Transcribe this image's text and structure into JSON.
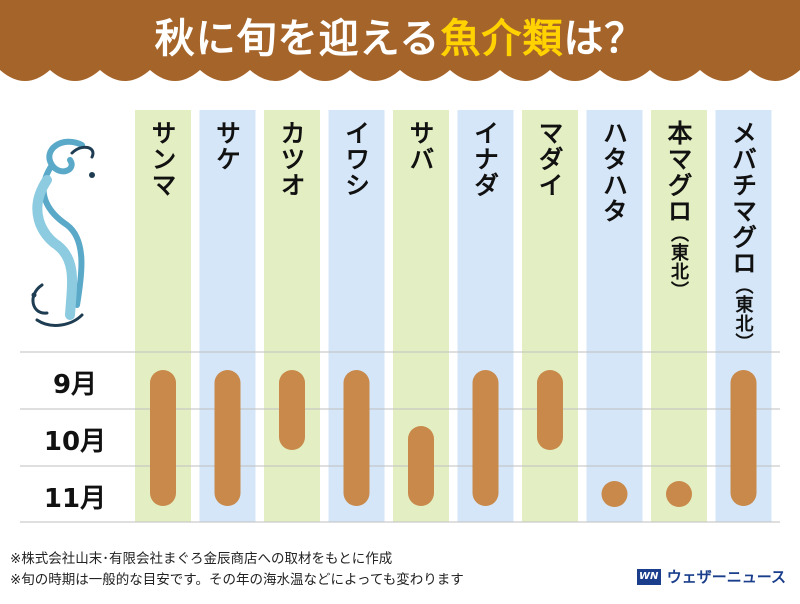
{
  "header": {
    "title_part1": "秋に旬を迎える",
    "title_accent": "魚介類",
    "title_part2": "は？",
    "background_color": "#a5652a",
    "accent_color": "#ffd200"
  },
  "chart_data": {
    "type": "bar",
    "orientation": "vertical-range",
    "categories": [
      {
        "name": "サンマ",
        "sub": ""
      },
      {
        "name": "サケ",
        "sub": ""
      },
      {
        "name": "カツオ",
        "sub": ""
      },
      {
        "name": "イワシ",
        "sub": ""
      },
      {
        "name": "サバ",
        "sub": ""
      },
      {
        "name": "イナダ",
        "sub": ""
      },
      {
        "name": "マダイ",
        "sub": ""
      },
      {
        "name": "ハタハタ",
        "sub": ""
      },
      {
        "name": "本マグロ",
        "sub": "（東北）"
      },
      {
        "name": "メバチマグロ",
        "sub": "（東北）"
      }
    ],
    "months": [
      "9月",
      "10月",
      "11月"
    ],
    "ranges": [
      [
        9.0,
        11.0
      ],
      [
        9.0,
        11.0
      ],
      [
        9.0,
        10.25
      ],
      [
        9.0,
        11.0
      ],
      [
        10.0,
        11.0
      ],
      [
        9.0,
        11.0
      ],
      [
        9.0,
        10.25
      ],
      [
        11.0,
        11.0
      ],
      [
        11.0,
        11.0
      ],
      [
        9.0,
        11.0
      ]
    ],
    "column_colors": [
      "#e3efc2",
      "#d5e6f8",
      "#e3efc2",
      "#d5e6f8",
      "#e3efc2",
      "#d5e6f8",
      "#e3efc2",
      "#d5e6f8",
      "#e3efc2",
      "#d5e6f8"
    ],
    "bar_color": "#c8894a",
    "grid": true
  },
  "footer": {
    "note1": "※株式会社山末･有限会社まぐろ金辰商店への取材をもとに作成",
    "note2": "※旬の時期は一般的な目安です。その年の海水温などによっても変わります",
    "brand_logo": "WN",
    "brand_name": "ウェザーニュース"
  }
}
